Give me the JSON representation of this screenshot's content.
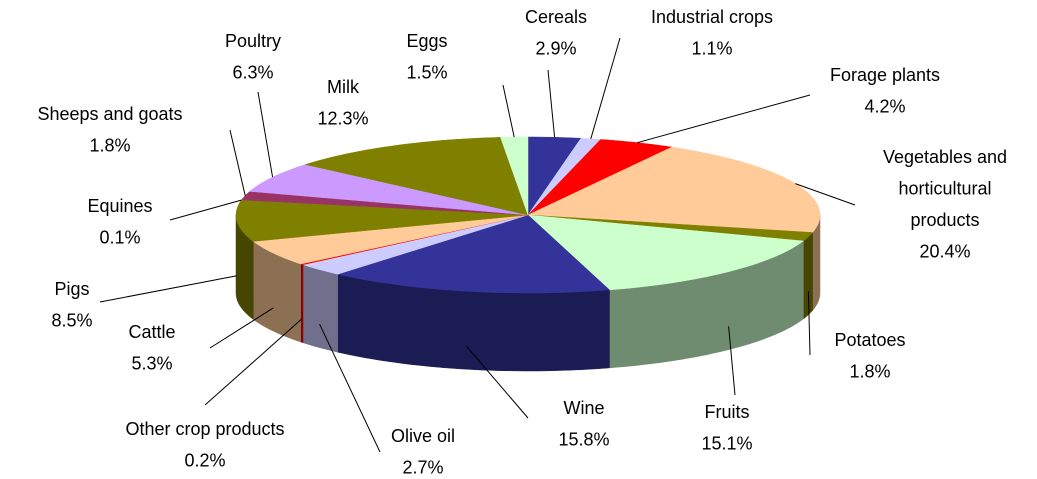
{
  "chart_data": {
    "type": "pie3d",
    "categories": [
      "Cereals",
      "Industrial crops",
      "Forage plants",
      "Vegetables and horticultural products",
      "Potatoes",
      "Fruits",
      "Wine",
      "Olive oil",
      "Other crop products",
      "Cattle",
      "Pigs",
      "Equines",
      "Sheeps and goats",
      "Poultry",
      "Milk",
      "Eggs"
    ],
    "values": [
      2.9,
      1.1,
      4.2,
      20.4,
      1.8,
      15.1,
      15.8,
      2.7,
      0.2,
      5.3,
      8.5,
      0.1,
      1.8,
      6.3,
      12.3,
      1.5
    ],
    "value_labels": [
      "2.9%",
      "1.1%",
      "4.2%",
      "20.4%",
      "1.8%",
      "15.1%",
      "15.8%",
      "2.7%",
      "0.2%",
      "5.3%",
      "8.5%",
      "0.1%",
      "1.8%",
      "6.3%",
      "12.3%",
      "1.5%"
    ],
    "colors": [
      "#333399",
      "#ccccff",
      "#ff0000",
      "#ffcc99",
      "#808000",
      "#ccffcc",
      "#333399",
      "#ccccff",
      "#ff0000",
      "#ffcc99",
      "#808000",
      "#808000",
      "#993366",
      "#cc99ff",
      "#808000",
      "#ccffcc"
    ]
  }
}
